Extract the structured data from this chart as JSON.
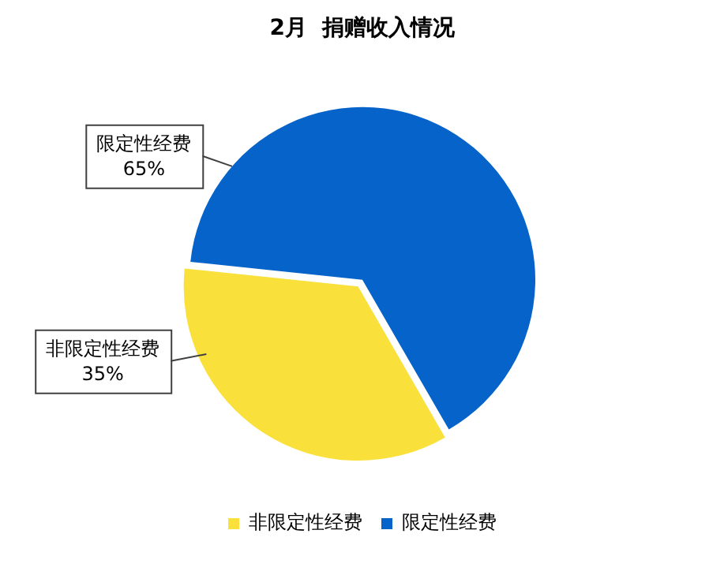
{
  "chart_data": {
    "type": "pie",
    "title": "2月  捐赠收入情况",
    "categories": [
      "非限定性经费",
      "限定性经费"
    ],
    "values": [
      35,
      65
    ],
    "colors": [
      "#f9e03b",
      "#0563c9"
    ],
    "value_labels": [
      "35%",
      "65%"
    ],
    "legend": "bottom"
  }
}
